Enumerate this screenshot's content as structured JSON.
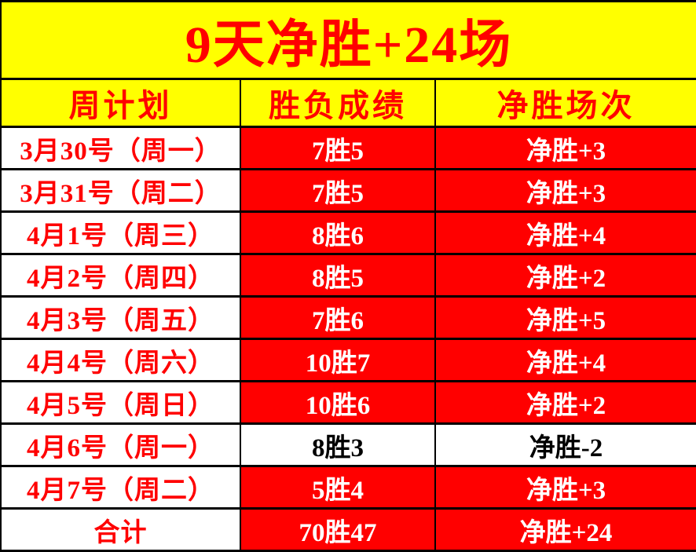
{
  "title": "9天净胜+24场",
  "columns": [
    "周计划",
    "胜负成绩",
    "净胜场次"
  ],
  "rows": [
    {
      "plan": "3月30号（周一）",
      "record": "7胜5",
      "net": "净胜+3",
      "highlight": true
    },
    {
      "plan": "3月31号（周二）",
      "record": "7胜5",
      "net": "净胜+3",
      "highlight": true
    },
    {
      "plan": "4月1号（周三）",
      "record": "8胜6",
      "net": "净胜+4",
      "highlight": true
    },
    {
      "plan": "4月2号（周四）",
      "record": "8胜5",
      "net": "净胜+2",
      "highlight": true
    },
    {
      "plan": "4月3号（周五）",
      "record": "7胜6",
      "net": "净胜+5",
      "highlight": true
    },
    {
      "plan": "4月4号（周六）",
      "record": "10胜7",
      "net": "净胜+4",
      "highlight": true
    },
    {
      "plan": "4月5号（周日）",
      "record": "10胜6",
      "net": "净胜+2",
      "highlight": true
    },
    {
      "plan": "4月6号（周一）",
      "record": "8胜3",
      "net": "净胜-2",
      "highlight": false
    },
    {
      "plan": "4月7号（周二）",
      "record": "5胜4",
      "net": "净胜+3",
      "highlight": true
    },
    {
      "plan": "合计",
      "record": "70胜47",
      "net": "净胜+24",
      "highlight": true
    }
  ],
  "colors": {
    "accent_red": "#ff0000",
    "banner_yellow": "#ffff00",
    "cell_white": "#ffffff",
    "grid_black": "#000000"
  }
}
